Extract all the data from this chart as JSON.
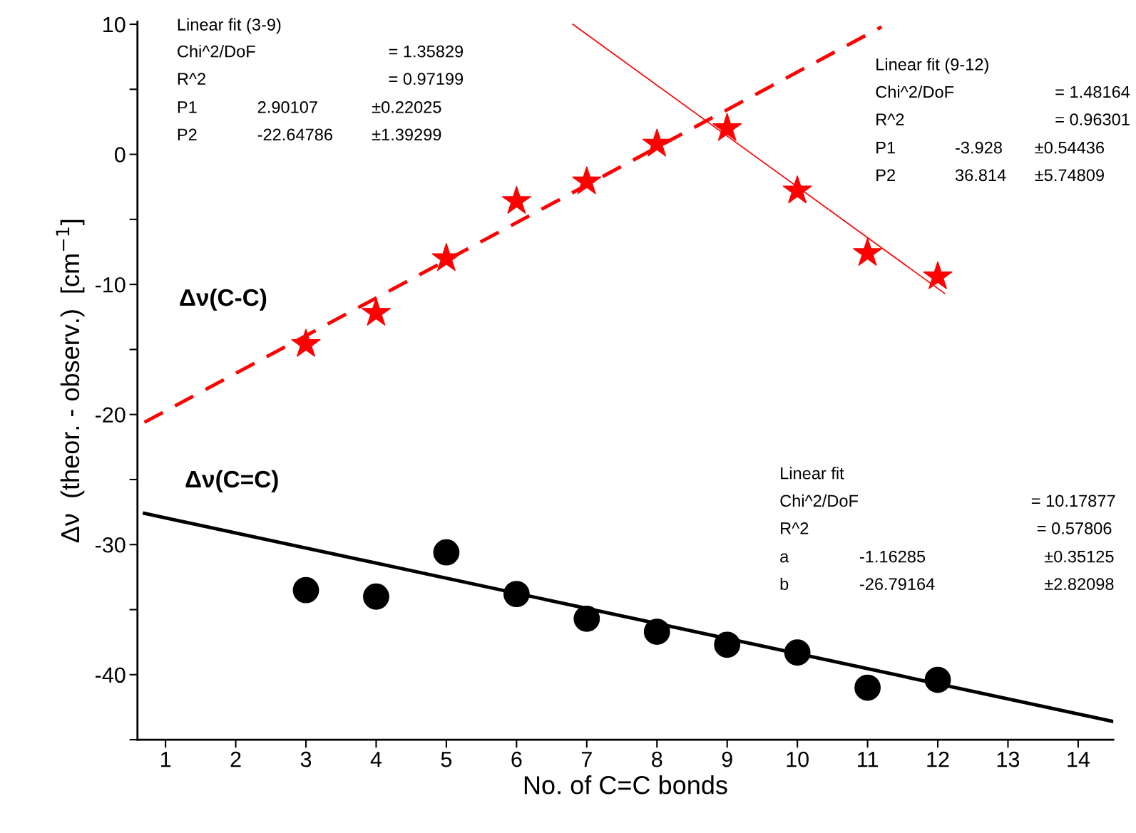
{
  "chart_data": {
    "type": "scatter",
    "xlabel": "No. of C=C bonds",
    "ylabel": "Δν  (theor. - observ.)  [cm$^{−1}$]",
    "xlim": [
      0.6,
      14.5
    ],
    "xticks": [
      1,
      2,
      3,
      4,
      5,
      6,
      7,
      8,
      9,
      10,
      11,
      12,
      13,
      14
    ],
    "ylim": [
      -45,
      10.2
    ],
    "yticks": [
      {
        "value": -45,
        "label": null
      },
      -40,
      {
        "value": -35,
        "label": null
      },
      -30,
      {
        "value": -25,
        "label": null
      },
      -20,
      {
        "value": -15,
        "label": null
      },
      -10,
      {
        "value": -5,
        "label": null
      },
      0,
      {
        "value": 5,
        "label": null
      },
      10
    ],
    "grid": false,
    "legend": false,
    "series": [
      {
        "marker": "star",
        "color": "#ff0000",
        "x": [
          3,
          4,
          5,
          6,
          7,
          8,
          9,
          10,
          11,
          12
        ],
        "values": [
          -14.6,
          -12.2,
          -8.0,
          -3.6,
          -2.1,
          0.8,
          2.0,
          -2.8,
          -7.6,
          -9.4
        ]
      },
      {
        "marker": "circle",
        "color": "#000000",
        "x": [
          3,
          4,
          5,
          6,
          7,
          8,
          9,
          10,
          11,
          12
        ],
        "values": [
          -33.5,
          -34.0,
          -30.6,
          -33.8,
          -35.7,
          -36.7,
          -37.7,
          -38.3,
          -41.0,
          -40.4
        ]
      },
      {
        "type": "line",
        "line_style": "dashed",
        "color": "#ff0000",
        "x": [
          0.7,
          11.2
        ],
        "values": [
          -20.6,
          9.8
        ]
      },
      {
        "type": "line",
        "line_style": "solid",
        "color": "#ff0000",
        "x": [
          6.8,
          12.1
        ],
        "values": [
          10.0,
          -10.7
        ]
      },
      {
        "type": "line",
        "line_style": "solid",
        "color": "#000000",
        "x": [
          0.7,
          14.5
        ],
        "values": [
          -27.6,
          -43.6
        ]
      }
    ],
    "annotations": [
      "Linear fit (3-9)",
      "Chi^2/DoF",
      "= 1.35829",
      "R^2",
      "= 0.97199",
      "P1",
      "2.90107",
      "±0.22025",
      "P2",
      "-22.64786",
      "±1.39299",
      "Linear fit (9-12)",
      "Chi^2/DoF",
      "= 1.48164",
      "R^2",
      "= 0.96301",
      "P1",
      "-3.928",
      "±0.54436",
      "P2",
      "36.814",
      "±5.74809",
      "Linear fit",
      "Chi^2/DoF",
      "= 10.17877",
      "R^2",
      "= 0.57806",
      "a",
      "-1.16285",
      "±0.35125",
      "b",
      "-26.79164",
      "±2.82098",
      "Δν(C-C)",
      "Δν(C=C)"
    ]
  }
}
